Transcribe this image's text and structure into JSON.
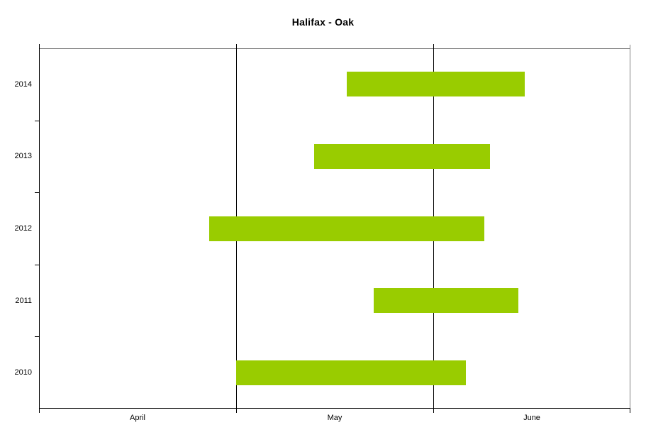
{
  "chart_data": {
    "type": "bar",
    "subtype": "horizontal-range-bars",
    "title": "Halifax - Oak",
    "categories": [
      "2014",
      "2013",
      "2012",
      "2011",
      "2010"
    ],
    "bars": [
      {
        "category": "2014",
        "start_date": "May 18",
        "end_date": "Jun 15",
        "start_day": 47.4,
        "end_day": 74.9
      },
      {
        "category": "2013",
        "start_date": "May 13",
        "end_date": "Jun 10",
        "start_day": 42.3,
        "end_day": 69.7
      },
      {
        "category": "2012",
        "start_date": "Apr 27",
        "end_date": "Jun 9",
        "start_day": 25.9,
        "end_day": 68.8
      },
      {
        "category": "2011",
        "start_date": "May 23",
        "end_date": "Jun 14",
        "start_day": 51.6,
        "end_day": 73.9
      },
      {
        "category": "2010",
        "start_date": "May 1",
        "end_date": "Jun 6",
        "start_day": 30.0,
        "end_day": 66.0
      }
    ],
    "x_axis": {
      "months": [
        "April",
        "May",
        "June"
      ],
      "month_lengths_days": [
        30,
        31,
        30
      ],
      "range_start": "Apr 1",
      "range_end": "Jul 1",
      "day_offset_origin": "days after Apr 1",
      "gridlines": "month-boundaries"
    },
    "y_axis": {
      "labels": [
        "2014",
        "2013",
        "2012",
        "2011",
        "2010"
      ]
    },
    "legend": "none",
    "grid": "vertical only",
    "colors": {
      "bar_fill": "#99CC00",
      "axis_line": "#000000",
      "plot_border": "#808080",
      "background": "#FFFFFF",
      "text": "#000000"
    }
  }
}
